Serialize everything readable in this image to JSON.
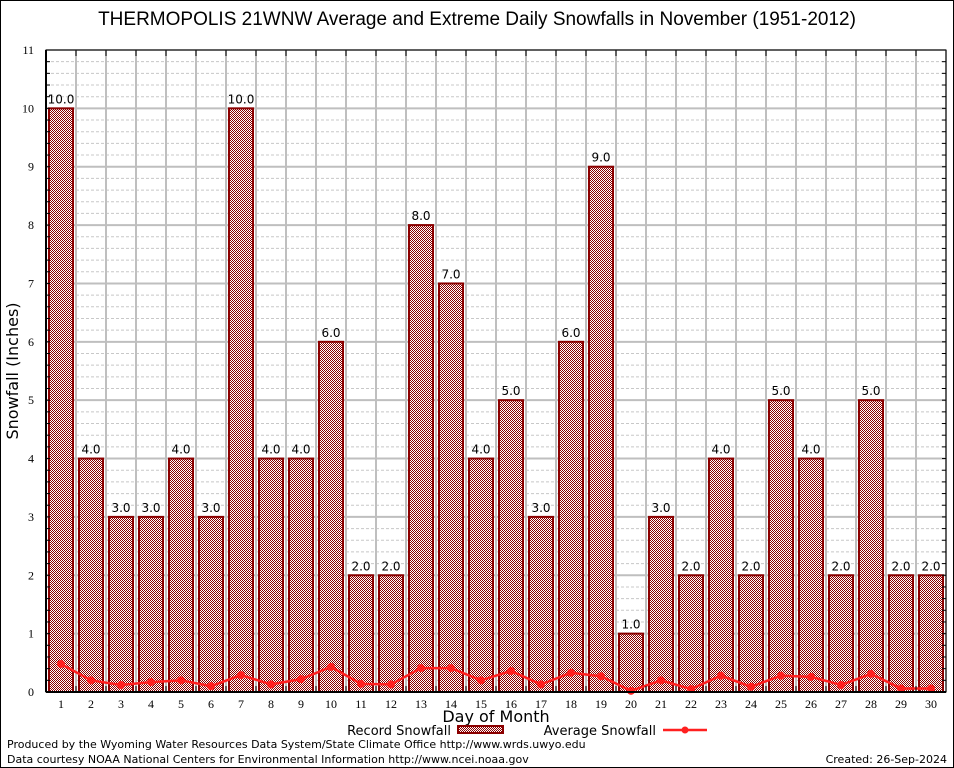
{
  "chart_data": {
    "type": "bar",
    "title": "THERMOPOLIS 21WNW Average and Extreme Daily Snowfalls in November (1951-2012)",
    "xlabel": "Day of Month",
    "ylabel": "Snowfall (Inches)",
    "ylim": [
      0,
      11
    ],
    "yticks": [
      0,
      1,
      2,
      3,
      4,
      5,
      6,
      7,
      8,
      9,
      10,
      11
    ],
    "grid": true,
    "legend_position": "bottom-center",
    "categories": [
      "1",
      "2",
      "3",
      "4",
      "5",
      "6",
      "7",
      "8",
      "9",
      "10",
      "11",
      "12",
      "13",
      "14",
      "15",
      "16",
      "17",
      "18",
      "19",
      "20",
      "21",
      "22",
      "23",
      "24",
      "25",
      "26",
      "27",
      "28",
      "29",
      "30"
    ],
    "series": [
      {
        "name": "Record Snowfall",
        "type": "bar",
        "color": "#8b0000",
        "values": [
          10.0,
          4.0,
          3.0,
          3.0,
          4.0,
          3.0,
          10.0,
          4.0,
          4.0,
          6.0,
          2.0,
          2.0,
          8.0,
          7.0,
          4.0,
          5.0,
          3.0,
          6.0,
          9.0,
          1.0,
          3.0,
          2.0,
          4.0,
          2.0,
          5.0,
          4.0,
          2.0,
          5.0,
          2.0,
          2.0
        ],
        "labels": [
          "10.0",
          "4.0",
          "3.0",
          "3.0",
          "4.0",
          "3.0",
          "10.0",
          "4.0",
          "4.0",
          "6.0",
          "2.0",
          "2.0",
          "8.0",
          "7.0",
          "4.0",
          "5.0",
          "3.0",
          "6.0",
          "9.0",
          "1.0",
          "3.0",
          "2.0",
          "4.0",
          "2.0",
          "5.0",
          "4.0",
          "2.0",
          "5.0",
          "2.0",
          "2.0"
        ]
      },
      {
        "name": "Average Snowfall",
        "type": "line",
        "color": "#ff2020",
        "values": [
          0.48,
          0.2,
          0.12,
          0.17,
          0.2,
          0.1,
          0.29,
          0.13,
          0.22,
          0.43,
          0.14,
          0.13,
          0.41,
          0.41,
          0.2,
          0.36,
          0.13,
          0.33,
          0.27,
          0.02,
          0.2,
          0.05,
          0.28,
          0.09,
          0.28,
          0.26,
          0.12,
          0.31,
          0.06,
          0.06
        ]
      }
    ]
  },
  "footer": {
    "line1": "Produced by the Wyoming Water Resources Data System/State Climate Office http://www.wrds.uwyo.edu",
    "line2": "Data courtesy NOAA National Centers for Environmental Information http://www.ncei.noaa.gov",
    "created": "Created: 26-Sep-2024"
  }
}
